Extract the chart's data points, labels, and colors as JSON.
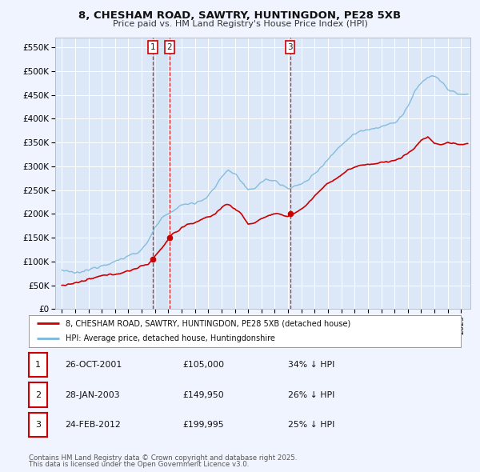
{
  "title_line1": "8, CHESHAM ROAD, SAWTRY, HUNTINGDON, PE28 5XB",
  "title_line2": "Price paid vs. HM Land Registry's House Price Index (HPI)",
  "bg_color": "#f0f4ff",
  "plot_bg_color": "#dce8f8",
  "hpi_color": "#7ab8d9",
  "price_color": "#cc0000",
  "legend_entry1": "8, CHESHAM ROAD, SAWTRY, HUNTINGDON, PE28 5XB (detached house)",
  "legend_entry2": "HPI: Average price, detached house, Huntingdonshire",
  "table_entries": [
    {
      "num": "1",
      "date": "26-OCT-2001",
      "price": "£105,000",
      "pct": "34% ↓ HPI"
    },
    {
      "num": "2",
      "date": "28-JAN-2003",
      "price": "£149,950",
      "pct": "26% ↓ HPI"
    },
    {
      "num": "3",
      "date": "24-FEB-2012",
      "price": "£199,995",
      "pct": "25% ↓ HPI"
    }
  ],
  "footnote1": "Contains HM Land Registry data © Crown copyright and database right 2025.",
  "footnote2": "This data is licensed under the Open Government Licence v3.0.",
  "ylim": [
    0,
    570000
  ],
  "yticks": [
    0,
    50000,
    100000,
    150000,
    200000,
    250000,
    300000,
    350000,
    400000,
    450000,
    500000,
    550000
  ],
  "ytick_labels": [
    "£0",
    "£50K",
    "£100K",
    "£150K",
    "£200K",
    "£250K",
    "£300K",
    "£350K",
    "£400K",
    "£450K",
    "£500K",
    "£550K"
  ],
  "xlim_start": 1994.5,
  "xlim_end": 2025.7,
  "sale_dates_decimal": [
    2001.826,
    2003.077,
    2012.147
  ],
  "sale_prices": [
    105000,
    149950,
    199995
  ],
  "sale_labels": [
    "1",
    "2",
    "3"
  ]
}
